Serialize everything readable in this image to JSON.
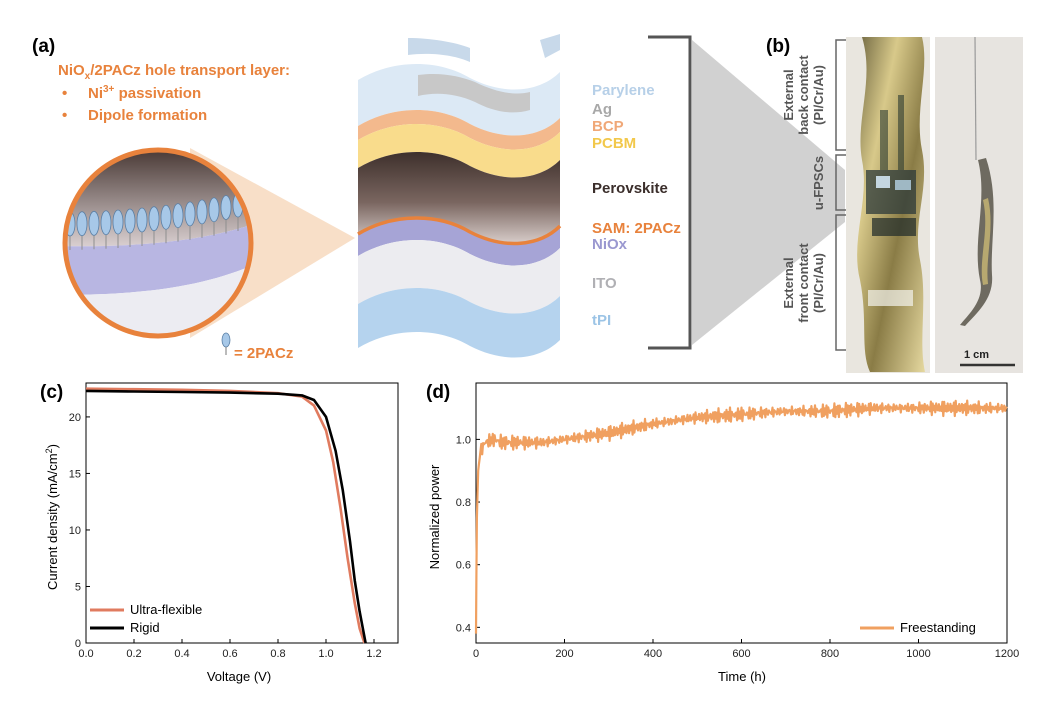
{
  "figure": {
    "colors": {
      "orange": "#e8823c",
      "perovskite": "#4a3a36",
      "nio": "#a6a4d6",
      "ito": "#e8e8ec",
      "tpi": "#b5d3ee",
      "parylene": "#c5dcf0",
      "ag": "#c8c8c8",
      "bcp": "#f3b98d",
      "pcbm": "#f9dc8c"
    },
    "panel_a": {
      "label": "(a)",
      "htl_title_pre": "NiO",
      "htl_title_sub": "x",
      "htl_title_post": "/2PACz hole transport layer:",
      "bullet1_pre": "Ni",
      "bullet1_sup": "3+",
      "bullet1_post": " passivation",
      "bullet2": "Dipole formation",
      "bullet_mark": "•",
      "legend_text": "= 2PACz",
      "layers": {
        "parylene": "Parylene",
        "ag": "Ag",
        "bcp": "BCP",
        "pcbm": "PCBM",
        "perovskite": "Perovskite",
        "sam": "SAM: 2PACz",
        "niox": "NiOx",
        "ito": "ITO",
        "tpi": "tPI"
      }
    },
    "panel_b": {
      "label": "(b)",
      "bracket_top": [
        "External",
        "back contact",
        "(PI/Cr/Au)"
      ],
      "bracket_mid": "u-FPSCs",
      "bracket_bot": [
        "External",
        "front contact",
        "(PI/Cr/Au)"
      ],
      "scale_bar": "1 cm"
    },
    "panel_c": {
      "label": "(c)",
      "xlabel": "Voltage (V)",
      "ylabel_pre": "Current density (mA/cm",
      "ylabel_sup": "2",
      "ylabel_post": ")"
    },
    "panel_d": {
      "label": "(d)",
      "xlabel": "Time (h)",
      "ylabel": "Normalized power"
    }
  },
  "chart_data": [
    {
      "id": "c",
      "type": "line",
      "title": "",
      "xlabel": "Voltage (V)",
      "ylabel": "Current density (mA/cm2)",
      "xlim": [
        0,
        1.3
      ],
      "ylim": [
        0,
        23
      ],
      "xticks": [
        "0.0",
        "0.2",
        "0.4",
        "0.6",
        "0.8",
        "1.0",
        "1.2"
      ],
      "yticks": [
        "0",
        "5",
        "10",
        "15",
        "20"
      ],
      "legend_position": "bottom-left",
      "series": [
        {
          "name": "Ultra-flexible",
          "color": "#e07b5f",
          "x": [
            0,
            0.2,
            0.4,
            0.6,
            0.8,
            0.9,
            0.95,
            1.0,
            1.03,
            1.06,
            1.09,
            1.12,
            1.14,
            1.16
          ],
          "y": [
            22.5,
            22.45,
            22.4,
            22.3,
            22.1,
            21.8,
            21.0,
            18.8,
            16.0,
            12.0,
            7.5,
            3.5,
            1.3,
            0
          ]
        },
        {
          "name": "Rigid",
          "color": "#000000",
          "x": [
            0,
            0.2,
            0.4,
            0.6,
            0.8,
            0.9,
            0.95,
            1.0,
            1.04,
            1.07,
            1.1,
            1.12,
            1.14,
            1.165
          ],
          "y": [
            22.3,
            22.25,
            22.2,
            22.15,
            22.05,
            21.9,
            21.5,
            20.0,
            17.0,
            13.5,
            9.0,
            5.5,
            2.8,
            0
          ]
        }
      ]
    },
    {
      "id": "d",
      "type": "line",
      "title": "",
      "xlabel": "Time (h)",
      "ylabel": "Normalized power",
      "xlim": [
        0,
        1200
      ],
      "ylim": [
        0.35,
        1.18
      ],
      "xticks": [
        "0",
        "200",
        "400",
        "600",
        "800",
        "1000",
        "1200"
      ],
      "yticks": [
        "0.4",
        "0.6",
        "0.8",
        "1.0"
      ],
      "legend_position": "bottom-right",
      "series": [
        {
          "name": "Freestanding",
          "color": "#f0a060",
          "x": [
            0,
            2,
            5,
            10,
            20,
            40,
            60,
            100,
            150,
            200,
            300,
            400,
            500,
            600,
            700,
            800,
            900,
            1000,
            1100,
            1200
          ],
          "y": [
            0.38,
            0.75,
            0.9,
            0.96,
            0.99,
            1.0,
            0.99,
            0.99,
            0.99,
            1.0,
            1.02,
            1.05,
            1.07,
            1.08,
            1.09,
            1.09,
            1.1,
            1.1,
            1.1,
            1.1
          ]
        }
      ]
    }
  ]
}
